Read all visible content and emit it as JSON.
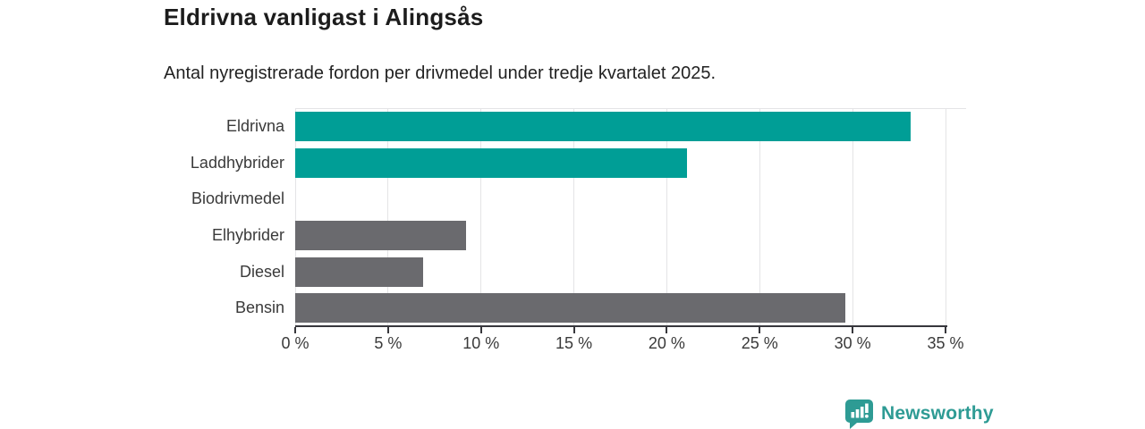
{
  "header": {
    "title": "Eldrivna vanligast i Alingsås",
    "subtitle": "Antal nyregistrerade fordon per drivmedel under tredje kvartalet 2025."
  },
  "chart_data": {
    "type": "bar",
    "orientation": "horizontal",
    "title": "Eldrivna vanligast i Alingsås",
    "subtitle": "Antal nyregistrerade fordon per drivmedel under tredje kvartalet 2025.",
    "categories": [
      "Eldrivna",
      "Laddhybrider",
      "Biodrivmedel",
      "Elhybrider",
      "Diesel",
      "Bensin"
    ],
    "values": [
      33.1,
      21.1,
      0,
      9.2,
      6.9,
      29.6
    ],
    "unit": "%",
    "highlighted": [
      true,
      true,
      false,
      false,
      false,
      false
    ],
    "xlim": [
      0,
      35
    ],
    "xticks": [
      0,
      5,
      10,
      15,
      20,
      25,
      30,
      35
    ],
    "xtick_suffix": " %",
    "grid": true,
    "legend": false,
    "colors": {
      "highlight": "#009e96",
      "default": "#6a6a6e",
      "gridline": "#e4e4e6",
      "axis": "#37373c"
    }
  },
  "footer": {
    "brand_name": "Newsworthy",
    "logo_icon": "bar-chart-speech-bubble-icon",
    "brand_color": "#2e9b94"
  }
}
